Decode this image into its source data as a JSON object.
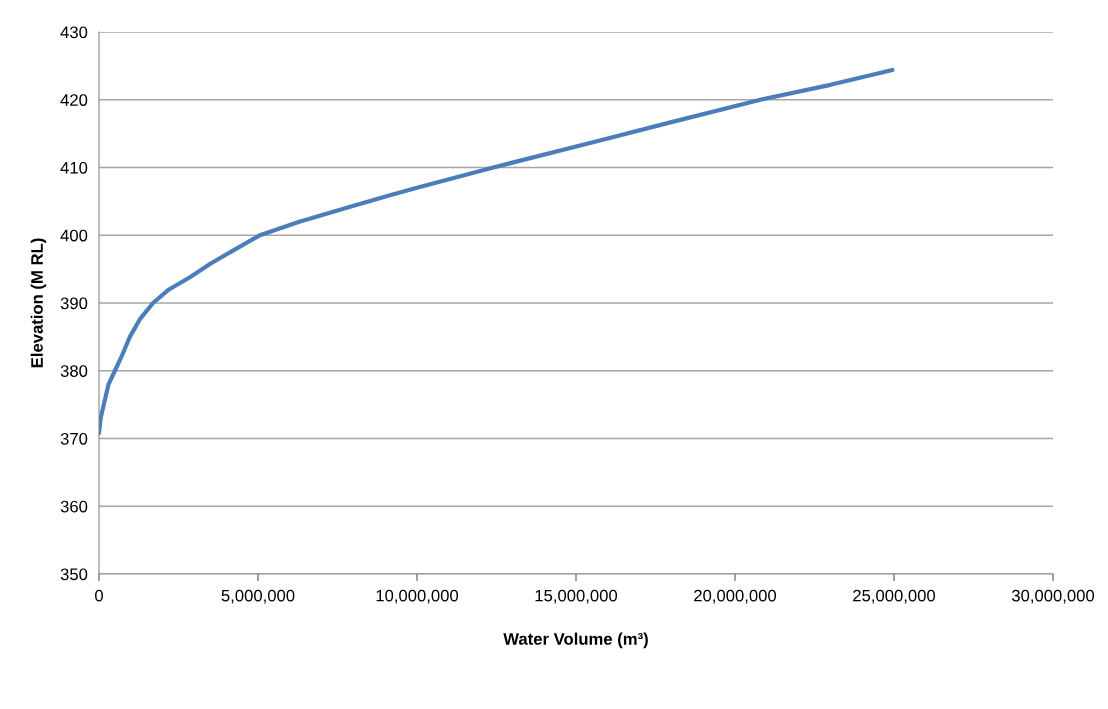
{
  "chart_data": {
    "type": "line",
    "xlabel": "Water Volume (m³)",
    "ylabel": "Elevation (M RL)",
    "x": [
      0,
      50000,
      150000,
      300000,
      500000,
      700000,
      970000,
      1300000,
      1700000,
      2200000,
      2860000,
      3500000,
      4200000,
      5060000,
      6300000,
      7900000,
      9150000,
      10000000,
      12400000,
      15750000,
      18000000,
      20800000,
      23000000,
      24950000
    ],
    "series": [
      {
        "color": "#4a7ebb",
        "values": [
          370.8,
          373.0,
          375.0,
          378.0,
          380.0,
          382.0,
          385.0,
          387.7,
          390.0,
          392.0,
          393.8,
          395.8,
          397.7,
          400.0,
          402.0,
          404.2,
          405.9,
          407.0,
          410.0,
          414.0,
          416.7,
          420.0,
          422.2,
          424.4
        ]
      }
    ],
    "xlim": [
      0,
      30000000
    ],
    "xticks": [
      {
        "value": 0,
        "label": "0"
      },
      {
        "value": 5000000,
        "label": "5,000,000"
      },
      {
        "value": 10000000,
        "label": "10,000,000"
      },
      {
        "value": 15000000,
        "label": "15,000,000"
      },
      {
        "value": 20000000,
        "label": "20,000,000"
      },
      {
        "value": 25000000,
        "label": "25,000,000"
      },
      {
        "value": 30000000,
        "label": "30,000,000"
      }
    ],
    "ylim": [
      350,
      430
    ],
    "yticks": [
      350,
      360,
      370,
      380,
      390,
      400,
      410,
      420,
      430
    ],
    "grid": "y",
    "marker": "none",
    "line_style": "solid"
  }
}
